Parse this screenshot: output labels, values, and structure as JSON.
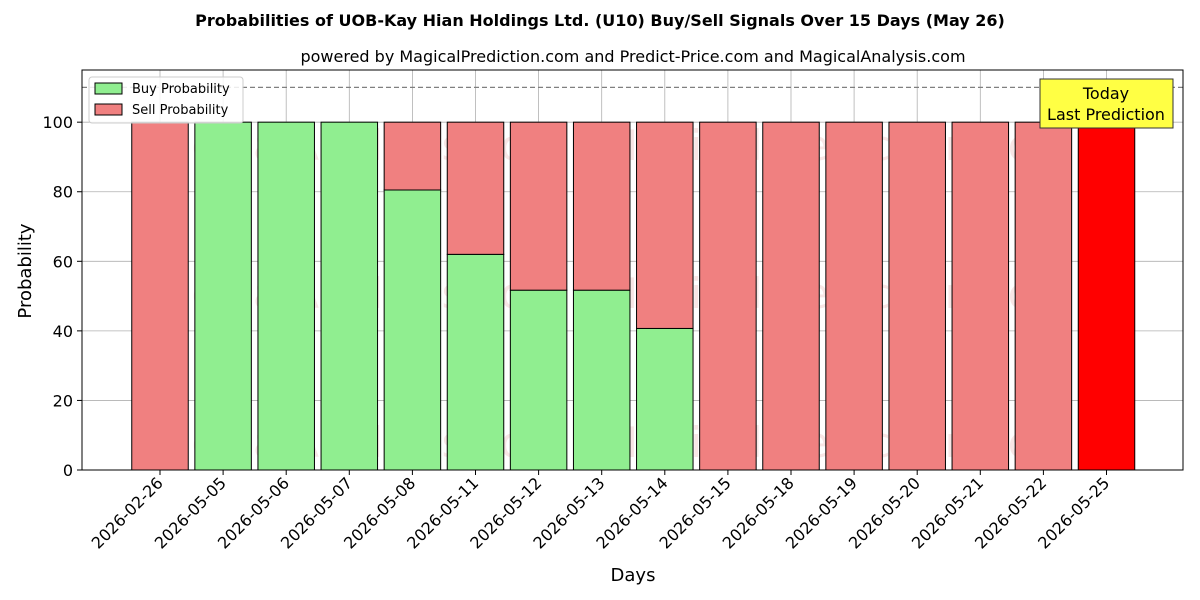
{
  "chart_data": {
    "type": "bar",
    "stacked": true,
    "title": "Probabilities of UOB-Kay Hian Holdings Ltd. (U10) Buy/Sell Signals Over 15 Days (May 26)",
    "subtitle": "powered by MagicalPrediction.com and Predict-Price.com and MagicalAnalysis.com",
    "xlabel": "Days",
    "ylabel": "Probability",
    "ylim": [
      0,
      115
    ],
    "yticks": [
      0,
      20,
      40,
      60,
      80,
      100
    ],
    "grid": true,
    "legend_placement": "top-left",
    "categories": [
      "2026-02-26",
      "2026-05-05",
      "2026-05-06",
      "2026-05-07",
      "2026-05-08",
      "2026-05-11",
      "2026-05-12",
      "2026-05-13",
      "2026-05-14",
      "2026-05-15",
      "2026-05-18",
      "2026-05-19",
      "2026-05-20",
      "2026-05-21",
      "2026-05-22",
      "2026-05-25"
    ],
    "series": [
      {
        "name": "Buy Probability",
        "color": "#90ee90",
        "values": [
          0,
          100,
          100,
          100,
          80.5,
          62,
          51.7,
          51.7,
          40.7,
          0,
          0,
          0,
          0,
          0,
          0,
          0
        ]
      },
      {
        "name": "Sell Probability",
        "color": "#f08080",
        "values": [
          100,
          0,
          0,
          0,
          19.5,
          38,
          48.3,
          48.3,
          59.3,
          100,
          100,
          100,
          100,
          100,
          100,
          100
        ]
      }
    ],
    "highlight": {
      "index": 15,
      "color": "#ff0000"
    },
    "reference_line": {
      "y": 110,
      "style": "dashed",
      "color": "#808080"
    },
    "annotation": {
      "lines": [
        "Today",
        "Last Prediction"
      ],
      "background": "#ffff44"
    },
    "watermarks": [
      "MagicalAnalysis.com",
      "MagicalPrediction.com"
    ]
  }
}
